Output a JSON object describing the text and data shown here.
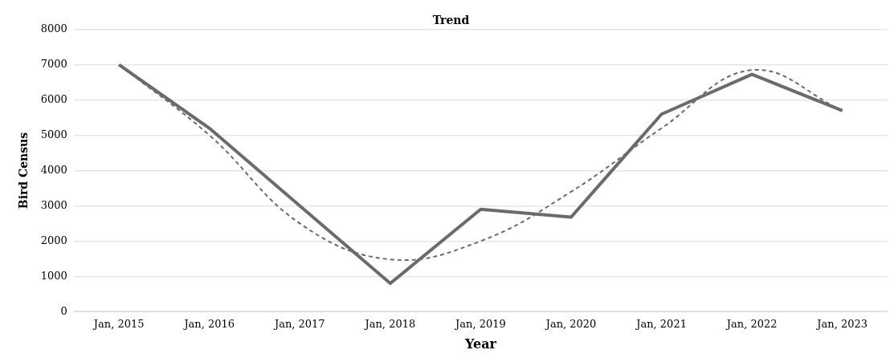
{
  "chart_data": {
    "type": "line",
    "title": "Trend",
    "xlabel": "Year",
    "ylabel": "Bird Census",
    "categories": [
      "Jan, 2015",
      "Jan, 2016",
      "Jan, 2017",
      "Jan, 2018",
      "Jan, 2019",
      "Jan, 2020",
      "Jan, 2021",
      "Jan, 2022",
      "Jan, 2023"
    ],
    "series": [
      {
        "color": "#6b6b6b",
        "line_style": "solid",
        "values": [
          7000,
          5200,
          3000,
          800,
          2900,
          2680,
          5600,
          6730,
          5700
        ]
      },
      {
        "color": "#6b6b6b",
        "line_style": "dashed",
        "values": [
          7000,
          5000,
          2500,
          1480,
          2000,
          3400,
          5200,
          6850,
          5700
        ]
      }
    ],
    "ylim": [
      0,
      8000
    ],
    "yticks": [
      0,
      1000,
      2000,
      3000,
      4000,
      5000,
      6000,
      7000,
      8000
    ],
    "grid": "y",
    "legend": false,
    "marker": "none"
  }
}
